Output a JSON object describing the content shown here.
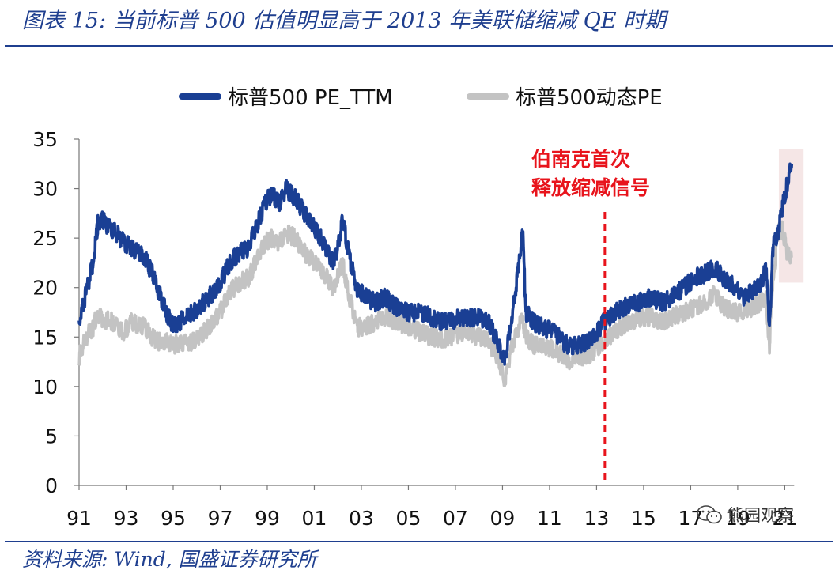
{
  "header": {
    "title": "图表 15:  当前标普 500 估值明显高于 2013 年美联储缩减 QE 时期"
  },
  "footer": {
    "source": "资料来源:  Wind, 国盛证券研究所"
  },
  "watermark": {
    "text": "熊园观察",
    "icon": "wechat-icon"
  },
  "colors": {
    "ttm": "#1a3f94",
    "forward": "#c3c3c3",
    "accent": "#1f3f8f",
    "annotation": "#e8141c",
    "highlight": "#f2dede"
  },
  "chart_data": {
    "type": "line",
    "title": "",
    "xlabel": "",
    "ylabel": "",
    "ylim": [
      0,
      35
    ],
    "xlim": [
      1991,
      2021.3
    ],
    "yticks": [
      0,
      5,
      10,
      15,
      20,
      25,
      30,
      35
    ],
    "xtick_labels": [
      "91",
      "93",
      "95",
      "97",
      "99",
      "01",
      "03",
      "05",
      "07",
      "09",
      "11",
      "13",
      "15",
      "17",
      "19",
      "21"
    ],
    "xtick_values": [
      1991,
      1993,
      1995,
      1997,
      1999,
      2001,
      2003,
      2005,
      2007,
      2009,
      2011,
      2013,
      2015,
      2017,
      2019,
      2021
    ],
    "legend_position": "top",
    "series": [
      {
        "name": "标普500 PE_TTM",
        "x": [
          1991.0,
          1991.3,
          1991.6,
          1991.8,
          1992.0,
          1992.3,
          1992.6,
          1992.9,
          1993.2,
          1993.5,
          1993.8,
          1994.1,
          1994.4,
          1994.7,
          1995.0,
          1995.5,
          1995.9,
          1996.3,
          1996.7,
          1997.0,
          1997.4,
          1997.8,
          1998.2,
          1998.6,
          1998.9,
          1999.2,
          1999.5,
          1999.8,
          2000.2,
          2000.6,
          2001.0,
          2001.4,
          2001.8,
          2002.0,
          2002.2,
          2002.5,
          2002.8,
          2003.2,
          2003.6,
          2004.0,
          2004.5,
          2005.0,
          2005.5,
          2006.0,
          2006.5,
          2007.0,
          2007.5,
          2008.0,
          2008.4,
          2008.8,
          2009.1,
          2009.4,
          2009.7,
          2009.85,
          2010.0,
          2010.3,
          2010.7,
          2011.2,
          2011.6,
          2011.9,
          2012.3,
          2012.7,
          2013.0,
          2013.3,
          2013.8,
          2014.3,
          2014.8,
          2015.3,
          2015.8,
          2016.2,
          2016.7,
          2017.2,
          2017.7,
          2018.0,
          2018.4,
          2018.9,
          2019.2,
          2019.6,
          2020.0,
          2020.2,
          2020.35,
          2020.5,
          2020.7,
          2020.9,
          2021.1,
          2021.3
        ],
        "values": [
          16.5,
          19.5,
          22.5,
          26.5,
          26.8,
          26,
          25.5,
          24.5,
          24.2,
          23.5,
          23,
          21.5,
          19.5,
          17.5,
          16,
          17,
          17.5,
          18.5,
          19.5,
          20.5,
          22.5,
          23.5,
          24,
          26.5,
          28.5,
          29.5,
          28.5,
          30,
          29,
          27.5,
          26,
          24.5,
          22.5,
          24,
          27,
          23,
          20,
          19,
          18.5,
          19,
          18,
          17.5,
          17.5,
          17,
          16.5,
          16.8,
          17,
          17,
          16.5,
          14.5,
          12.5,
          17,
          22.5,
          26,
          17.5,
          16.5,
          16,
          15.5,
          14.5,
          14,
          14.2,
          14.7,
          15.5,
          16.5,
          17.5,
          18.2,
          18.5,
          19,
          18.5,
          19,
          20,
          21,
          21.5,
          22,
          21,
          20,
          19,
          19.5,
          20.5,
          22,
          16,
          24,
          25.5,
          28,
          30.5,
          32.5
        ]
      },
      {
        "name": "标普500动态PE",
        "x": [
          1991.0,
          1991.3,
          1991.6,
          1991.8,
          1992.0,
          1992.3,
          1992.6,
          1992.9,
          1993.2,
          1993.5,
          1993.8,
          1994.1,
          1994.4,
          1994.7,
          1995.0,
          1995.5,
          1995.9,
          1996.3,
          1996.7,
          1997.0,
          1997.4,
          1997.8,
          1998.2,
          1998.6,
          1998.9,
          1999.2,
          1999.5,
          1999.8,
          2000.2,
          2000.6,
          2001.0,
          2001.4,
          2001.8,
          2002.0,
          2002.2,
          2002.5,
          2002.8,
          2003.2,
          2003.6,
          2004.0,
          2004.5,
          2005.0,
          2005.5,
          2006.0,
          2006.5,
          2007.0,
          2007.5,
          2008.0,
          2008.4,
          2008.8,
          2009.1,
          2009.4,
          2009.7,
          2009.85,
          2010.0,
          2010.3,
          2010.7,
          2011.2,
          2011.6,
          2011.9,
          2012.3,
          2012.7,
          2013.0,
          2013.3,
          2013.8,
          2014.3,
          2014.8,
          2015.3,
          2015.8,
          2016.2,
          2016.7,
          2017.2,
          2017.7,
          2018.0,
          2018.4,
          2018.9,
          2019.2,
          2019.6,
          2020.0,
          2020.2,
          2020.35,
          2020.5,
          2020.7,
          2020.9,
          2021.1,
          2021.3
        ],
        "values": [
          13,
          15,
          16,
          17.5,
          16.5,
          16.8,
          16,
          15.5,
          16.5,
          16.2,
          16,
          15,
          14.5,
          14.5,
          14.2,
          14.5,
          14.5,
          15.5,
          16.5,
          17.5,
          19.5,
          20.5,
          21,
          23,
          24.5,
          25,
          24.5,
          25.5,
          25,
          23.5,
          22.5,
          21.5,
          20,
          21,
          22.5,
          19,
          16,
          16,
          16.5,
          17,
          16.5,
          16,
          15.5,
          15,
          14.8,
          15.2,
          15.5,
          15,
          14.5,
          13,
          10.5,
          14,
          16,
          17,
          15,
          14.2,
          14,
          13.8,
          13,
          12.5,
          13,
          13.2,
          13.8,
          14.5,
          15.5,
          16.5,
          16.8,
          17,
          16.5,
          17,
          17.5,
          18,
          18.5,
          19.5,
          18,
          17.5,
          17.5,
          18,
          18.5,
          19,
          14,
          21,
          25.5,
          26,
          23.5,
          23
        ]
      }
    ],
    "annotations": [
      {
        "text_lines": [
          "伯南克首次",
          "释放缩减信号"
        ],
        "x": 2013.35,
        "style": "vertical-dashed-line"
      }
    ],
    "highlight": {
      "x_start": 2020.75,
      "x_end": 2021.8,
      "y_start": 20.5,
      "y_end": 34
    }
  }
}
